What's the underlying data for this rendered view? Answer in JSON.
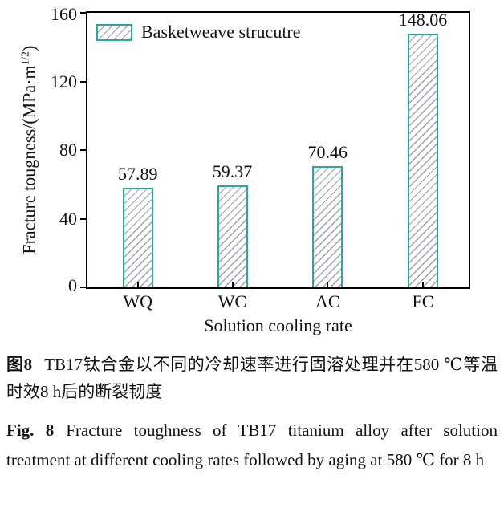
{
  "chart_data": {
    "type": "bar",
    "categories": [
      "WQ",
      "WC",
      "AC",
      "FC"
    ],
    "values": [
      57.89,
      59.37,
      70.46,
      148.06
    ],
    "title": "",
    "xlabel": "Solution cooling rate",
    "ylabel": "Fracture tougness/(MPa·m^(1/2))",
    "ylabel_prefix": "Fracture tougness/(MPa·m",
    "ylabel_sup": "1/2",
    "ylabel_suffix": ")",
    "ylim": [
      0,
      160
    ],
    "yticks": [
      0,
      40,
      80,
      120,
      160
    ],
    "ytick_labels": [
      "160",
      "120",
      "80",
      "40",
      "0"
    ],
    "grid": false,
    "legend": [
      "Basketweave strucutre"
    ],
    "legend_position": "upper-left",
    "bar_hatch": "/"
  },
  "colors": {
    "bar_border": "#2aa7a0",
    "hatch": "#9aa0ad",
    "axis": "#000000",
    "background": "#ffffff"
  },
  "captions": {
    "zh_label": "图8",
    "zh_text": "TB17钛合金以不同的冷却速率进行固溶处理并在580 ℃等温时效8 h后的断裂韧度",
    "en_label": "Fig. 8",
    "en_text": "Fracture toughness of TB17 titanium alloy after solution treatment at different cooling rates followed by aging at 580 ℃ for 8 h"
  }
}
